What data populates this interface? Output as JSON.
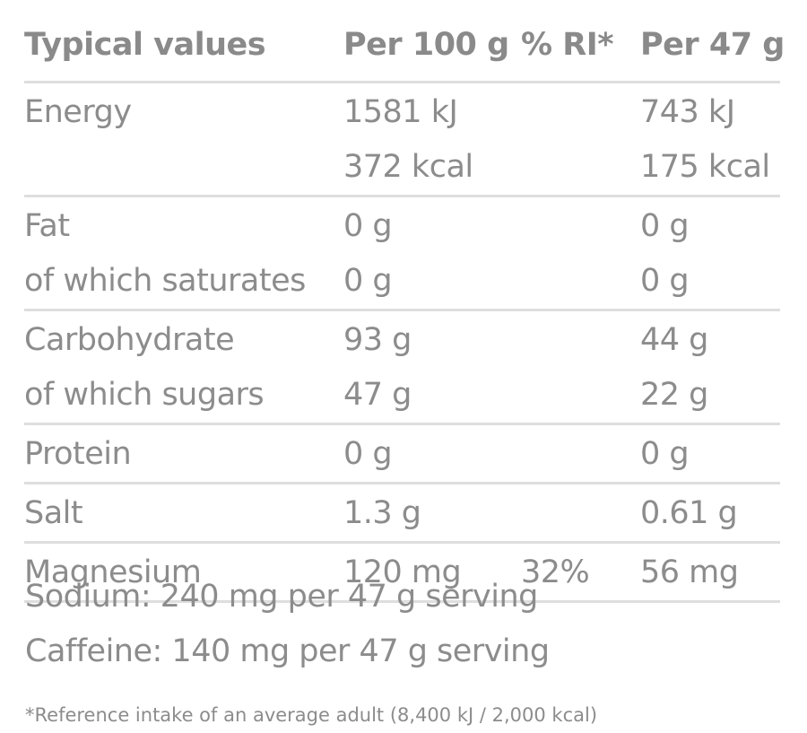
{
  "header": {
    "label": "Typical values",
    "per100": "Per 100 g",
    "ri": "% RI*",
    "per_serving": "Per 47 g"
  },
  "groups": [
    {
      "rows": [
        {
          "label": "Energy",
          "per100": "1581 kJ",
          "ri": "",
          "per_serving": "743 kJ"
        },
        {
          "label": "",
          "per100": "372 kcal",
          "ri": "",
          "per_serving": "175 kcal"
        }
      ]
    },
    {
      "rows": [
        {
          "label": "Fat",
          "per100": "0 g",
          "ri": "",
          "per_serving": "0 g"
        },
        {
          "label": "of which saturates",
          "per100": "0 g",
          "ri": "",
          "per_serving": "0 g"
        }
      ]
    },
    {
      "rows": [
        {
          "label": "Carbohydrate",
          "per100": "93 g",
          "ri": "",
          "per_serving": "44 g"
        },
        {
          "label": "of which sugars",
          "per100": "47 g",
          "ri": "",
          "per_serving": "22 g"
        }
      ]
    },
    {
      "rows": [
        {
          "label": "Protein",
          "per100": "0 g",
          "ri": "",
          "per_serving": "0 g"
        }
      ]
    },
    {
      "rows": [
        {
          "label": "Salt",
          "per100": "1.3 g",
          "ri": "",
          "per_serving": "0.61 g"
        }
      ]
    },
    {
      "rows": [
        {
          "label": "Magnesium",
          "per100": "120 mg",
          "ri": "32%",
          "per_serving": "56 mg"
        }
      ]
    }
  ],
  "notes": [
    "Sodium: 240 mg per 47 g serving",
    "Caffeine: 140 mg per 47 g serving"
  ],
  "footnote": "*Reference intake of an average adult (8,400 kJ / 2,000 kcal)",
  "colors": {
    "text": "#8c8c8c",
    "rule": "#dedede"
  }
}
